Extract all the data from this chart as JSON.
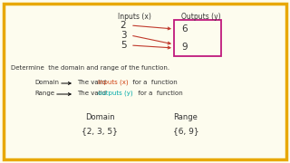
{
  "bg_color": "#fdfcee",
  "border_color": "#e8a800",
  "inputs_label": "Inputs (x)",
  "outputs_label": "Outputs (y)",
  "input_values": [
    "2",
    "3",
    "5"
  ],
  "output_values": [
    "6",
    "9"
  ],
  "arrow_color": "#c0392b",
  "output_box_color": "#c0187c",
  "line1": "Determine  the domain and range of the function.",
  "domain_label": "Domain",
  "range_label": "Range",
  "domain_def": "The valid ",
  "domain_colored": "inputs (x)",
  "domain_colored_color": "#d04010",
  "domain_suffix": " for a  function",
  "range_def": "The valid ",
  "range_colored": "outputs (y)",
  "range_colored_color": "#00aaaa",
  "range_suffix": " for a  function",
  "domain_set": "{2, 3, 5}",
  "range_set": "{6, 9}",
  "font_color": "#333333",
  "font_size_header": 5.5,
  "font_size_values": 7.5,
  "font_size_body": 5.0,
  "font_size_sets": 6.5
}
